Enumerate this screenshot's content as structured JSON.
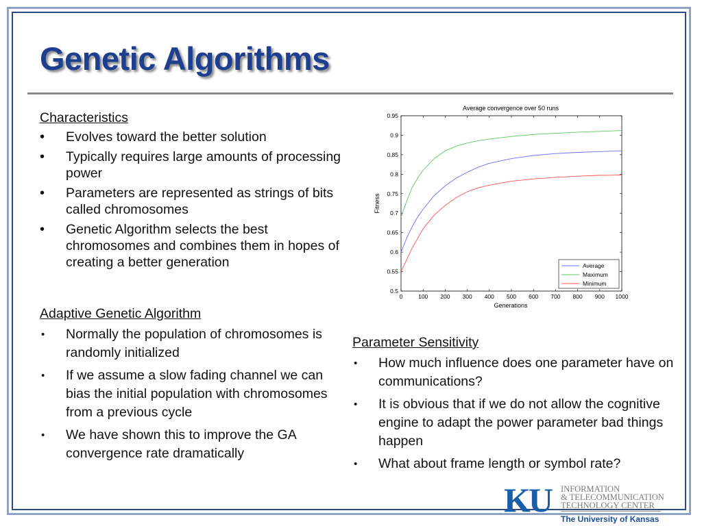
{
  "slide": {
    "title": "Genetic Algorithms"
  },
  "characteristics": {
    "heading": "Characteristics",
    "items": [
      "Evolves toward the better solution",
      "Typically requires large amounts of processing power",
      "Parameters are represented as strings of bits called chromosomes",
      "Genetic Algorithm selects the best chromosomes and combines them in hopes of creating a better generation"
    ]
  },
  "adaptive": {
    "heading": "Adaptive Genetic Algorithm",
    "items": [
      "Normally the population of chromosomes is randomly initialized",
      "If we assume a slow fading channel we can bias the initial population with chromosomes from a previous cycle",
      "We have shown this to improve the GA convergence rate dramatically"
    ]
  },
  "sensitivity": {
    "heading": "Parameter Sensitivity",
    "items": [
      "How much influence does one parameter have on communications?",
      "It is obvious that if we do not allow the cognitive engine to adapt the power parameter bad things happen",
      "What about frame length or symbol rate?"
    ]
  },
  "logo": {
    "mark": "KU",
    "line1": "INFORMATION",
    "line2": "& TELECOMMUNICATION",
    "line3": "TECHNOLOGY CENTER",
    "university": "The University of Kansas",
    "color": "#1b5ea8"
  },
  "chart_data": {
    "type": "line",
    "title": "Average convergence over 50 runs",
    "xlabel": "Generations",
    "ylabel": "Fitness",
    "xlim": [
      0,
      1000
    ],
    "ylim": [
      0.5,
      0.95
    ],
    "xticks": [
      "0",
      "100",
      "200",
      "300",
      "400",
      "500",
      "600",
      "700",
      "800",
      "900",
      "1000"
    ],
    "yticks": [
      "0.5",
      "0.55",
      "0.6",
      "0.65",
      "0.7",
      "0.75",
      "0.8",
      "0.85",
      "0.9",
      "0.95"
    ],
    "grid": false,
    "legend_position": "bottom-right",
    "x": [
      0,
      25,
      50,
      75,
      100,
      150,
      200,
      250,
      300,
      350,
      400,
      500,
      600,
      700,
      800,
      900,
      1000
    ],
    "series": [
      {
        "name": "Average",
        "color": "#6b6bff",
        "values": [
          0.6,
          0.635,
          0.665,
          0.69,
          0.71,
          0.745,
          0.77,
          0.79,
          0.805,
          0.818,
          0.828,
          0.84,
          0.848,
          0.853,
          0.856,
          0.858,
          0.86
        ]
      },
      {
        "name": "Maximum",
        "color": "#5cc85c",
        "values": [
          0.69,
          0.73,
          0.765,
          0.79,
          0.81,
          0.84,
          0.86,
          0.872,
          0.88,
          0.886,
          0.89,
          0.897,
          0.902,
          0.905,
          0.908,
          0.91,
          0.912
        ]
      },
      {
        "name": "Minimum",
        "color": "#ff5050",
        "values": [
          0.55,
          0.58,
          0.61,
          0.635,
          0.66,
          0.695,
          0.72,
          0.74,
          0.755,
          0.765,
          0.772,
          0.782,
          0.788,
          0.792,
          0.795,
          0.797,
          0.798
        ]
      }
    ]
  }
}
